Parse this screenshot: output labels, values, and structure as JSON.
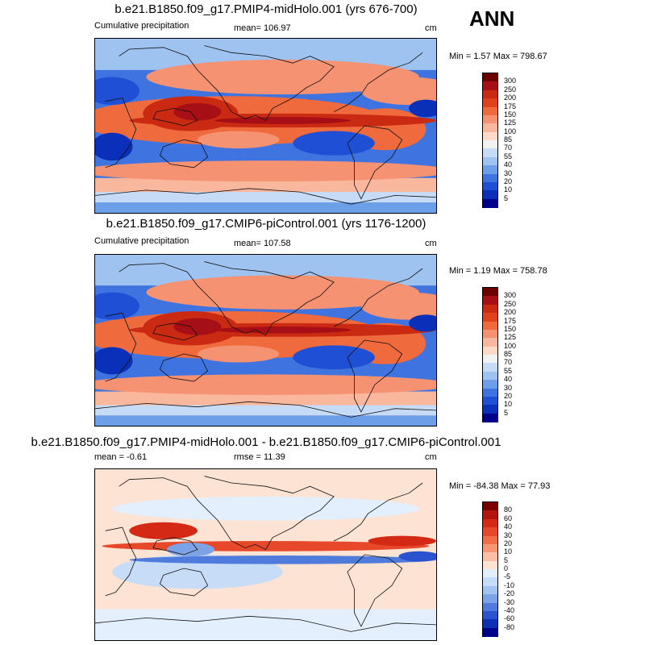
{
  "season": "ANN",
  "panels": [
    {
      "id": "midholo",
      "title": "b.e21.B1850.f09_g17.PMIP4-midHolo.001 (yrs 676-700)",
      "left_label": "Cumulative precipitation",
      "center_label": "mean= 106.97",
      "units": "cm",
      "minmax": "Min =   1.57 Max = 798.67",
      "colorbar": {
        "labels": [
          "300",
          "250",
          "200",
          "175",
          "150",
          "125",
          "100",
          "85",
          "70",
          "55",
          "40",
          "30",
          "20",
          "10",
          "5"
        ],
        "colors": [
          "#6b0000",
          "#a50f15",
          "#cb2a12",
          "#e0421d",
          "#ef6a3c",
          "#f59272",
          "#f9b79d",
          "#fdd9c7",
          "#f2f2f2",
          "#c6dbf5",
          "#9ec3f0",
          "#6d9ee8",
          "#3f73e0",
          "#1f4fd4",
          "#0a2fb8",
          "#00008b"
        ]
      },
      "map_style": "precip"
    },
    {
      "id": "picontrol",
      "title": "b.e21.B1850.f09_g17.CMIP6-piControl.001 (yrs 1176-1200)",
      "left_label": "Cumulative precipitation",
      "center_label": "mean= 107.58",
      "units": "cm",
      "minmax": "Min =   1.19 Max = 758.78",
      "colorbar": {
        "labels": [
          "300",
          "250",
          "200",
          "175",
          "150",
          "125",
          "100",
          "85",
          "70",
          "55",
          "40",
          "30",
          "20",
          "10",
          "5"
        ],
        "colors": [
          "#6b0000",
          "#a50f15",
          "#cb2a12",
          "#e0421d",
          "#ef6a3c",
          "#f59272",
          "#f9b79d",
          "#fdd9c7",
          "#f2f2f2",
          "#c6dbf5",
          "#9ec3f0",
          "#6d9ee8",
          "#3f73e0",
          "#1f4fd4",
          "#0a2fb8",
          "#00008b"
        ]
      },
      "map_style": "precip"
    },
    {
      "id": "diff",
      "title": "b.e21.B1850.f09_g17.PMIP4-midHolo.001 - b.e21.B1850.f09_g17.CMIP6-piControl.001",
      "left_label": "mean =  -0.61",
      "center_label": "rmse =  11.39",
      "units": "cm",
      "minmax": "Min = -84.38 Max =  77.93",
      "colorbar": {
        "labels": [
          "80",
          "60",
          "40",
          "30",
          "20",
          "10",
          "5",
          "0",
          "-5",
          "-10",
          "-20",
          "-30",
          "-40",
          "-60",
          "-80"
        ],
        "colors": [
          "#7a0000",
          "#b2140f",
          "#d42a15",
          "#e8482a",
          "#f26d4a",
          "#f79675",
          "#fbbfa5",
          "#fde3d4",
          "#e4effd",
          "#c7dcf7",
          "#a3c3f0",
          "#7ba3e6",
          "#4f7bdc",
          "#2a52cf",
          "#0d2fb4",
          "#00008b"
        ]
      },
      "map_style": "diff"
    }
  ]
}
